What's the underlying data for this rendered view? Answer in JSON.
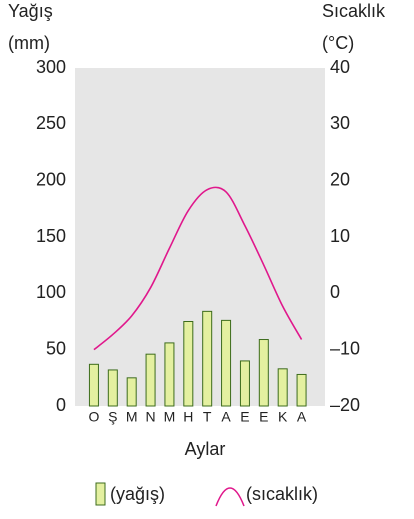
{
  "chart_data": {
    "type": "bar",
    "y_label_line1": "Yağış",
    "y_label_line2": "(mm)",
    "y2_label_line1": "Sıcaklık",
    "y2_label_line2": "(°C)",
    "x_label": "Aylar",
    "categories": [
      "O",
      "Ş",
      "M",
      "N",
      "M",
      "H",
      "T",
      "A",
      "E",
      "E",
      "K",
      "A"
    ],
    "series": [
      {
        "name": "(yağış)",
        "type": "bar",
        "axis": "y",
        "color": "#e4f0a0",
        "stroke": "#3c6b1c",
        "values": [
          37,
          32,
          25,
          46,
          56,
          75,
          84,
          76,
          40,
          59,
          33,
          28
        ]
      },
      {
        "name": "(sıcaklık)",
        "type": "line",
        "axis": "y2",
        "color": "#e0188c",
        "values": [
          -10,
          -7.3,
          -4,
          1,
          8,
          14.7,
          18.4,
          18,
          12,
          5,
          -2.3,
          -8.2
        ]
      }
    ],
    "ylim": [
      0,
      300
    ],
    "yticks": [
      0,
      50,
      100,
      150,
      200,
      250,
      300
    ],
    "y2lim": [
      -20,
      40
    ],
    "y2ticks": [
      {
        "value": -20,
        "label": "–20"
      },
      {
        "value": -10,
        "label": "–10"
      },
      0,
      10,
      20,
      30,
      40
    ]
  }
}
